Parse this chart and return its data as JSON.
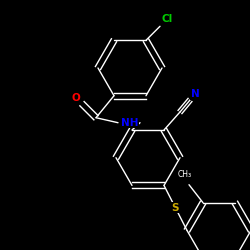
{
  "background_color": "#000000",
  "bond_color": "#ffffff",
  "atom_colors": {
    "Cl": "#00cc00",
    "O": "#ff0000",
    "N": "#0000ff",
    "S": "#ccaa00"
  },
  "figsize": [
    2.5,
    2.5
  ],
  "dpi": 100
}
